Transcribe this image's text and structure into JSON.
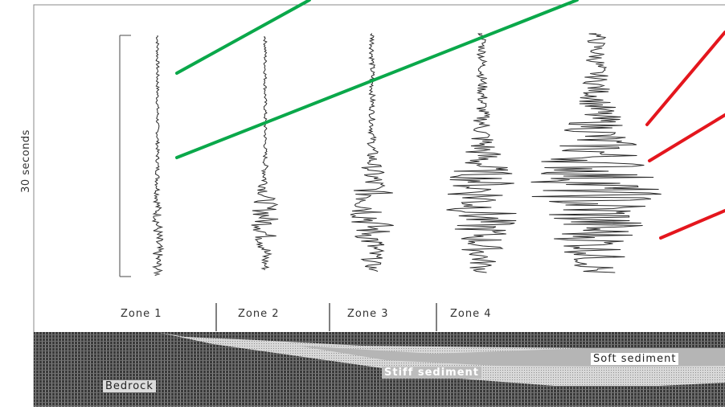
{
  "axis": {
    "time_label": "30 seconds"
  },
  "zones": [
    {
      "label": "Zone 1"
    },
    {
      "label": "Zone 2"
    },
    {
      "label": "Zone 3"
    },
    {
      "label": "Zone 4"
    }
  ],
  "layers": {
    "soft_sediment": "Soft sediment",
    "stiff_sediment": "Stiff sediment",
    "bedrock": "Bedrock"
  },
  "colors": {
    "green_lines": "#0aa84a",
    "red_lines": "#e4161d",
    "trace": "#2a2a2a",
    "bedrock": "#3a3a3a",
    "soft_sediment": "#b5b5b5",
    "stiff_sediment": "#d8d8d8"
  }
}
